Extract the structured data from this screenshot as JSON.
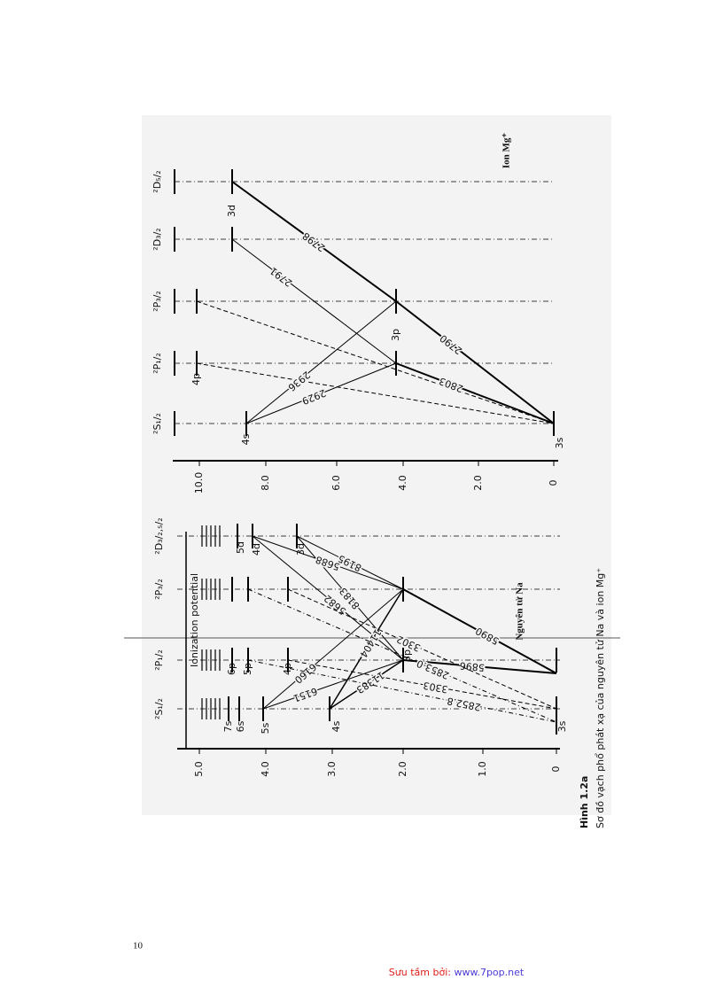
{
  "page_number": "10",
  "caption": {
    "label": "Hình 1.2a",
    "text": "Sơ đồ vạch phổ phát xạ của nguyên tử Na và ion Mg⁺"
  },
  "footer": {
    "prefix": "Sưu tầm bởi: ",
    "link": "www.7pop.net"
  },
  "na": {
    "title": "Nguyên tử Na",
    "ionization": "Ionization potential",
    "axis": [
      "5.0",
      "4.0",
      "3.0",
      "2.0",
      "1.0",
      "0"
    ],
    "columns": [
      "²S₁/₂",
      "²P₁/₂",
      "²P₃/₂",
      "²D₃/₂,₅/₂"
    ],
    "terms": [
      "3s",
      "4s",
      "5s",
      "6s",
      "7s",
      "3p",
      "4p",
      "5p",
      "6p",
      "3d",
      "4d",
      "5d"
    ],
    "lines": [
      "5890",
      "5896",
      "8195",
      "8183",
      "5688",
      "5682",
      "3302",
      "3303",
      "6160",
      "6151",
      "11404",
      "11383",
      "2853.0",
      "2852.8"
    ]
  },
  "mg": {
    "title": "Ion Mg⁺",
    "axis": [
      "10.0",
      "8.0",
      "6.0",
      "4.0",
      "2.0",
      "0"
    ],
    "columns": [
      "²S₁/₂",
      "²P₁/₂",
      "²P₃/₂",
      "²D₃/₂",
      "²D₅/₂"
    ],
    "terms": [
      "3s",
      "4s",
      "3p",
      "4p",
      "3d"
    ],
    "lines": [
      "2798",
      "2791",
      "2790",
      "2803",
      "2936",
      "2929"
    ]
  }
}
